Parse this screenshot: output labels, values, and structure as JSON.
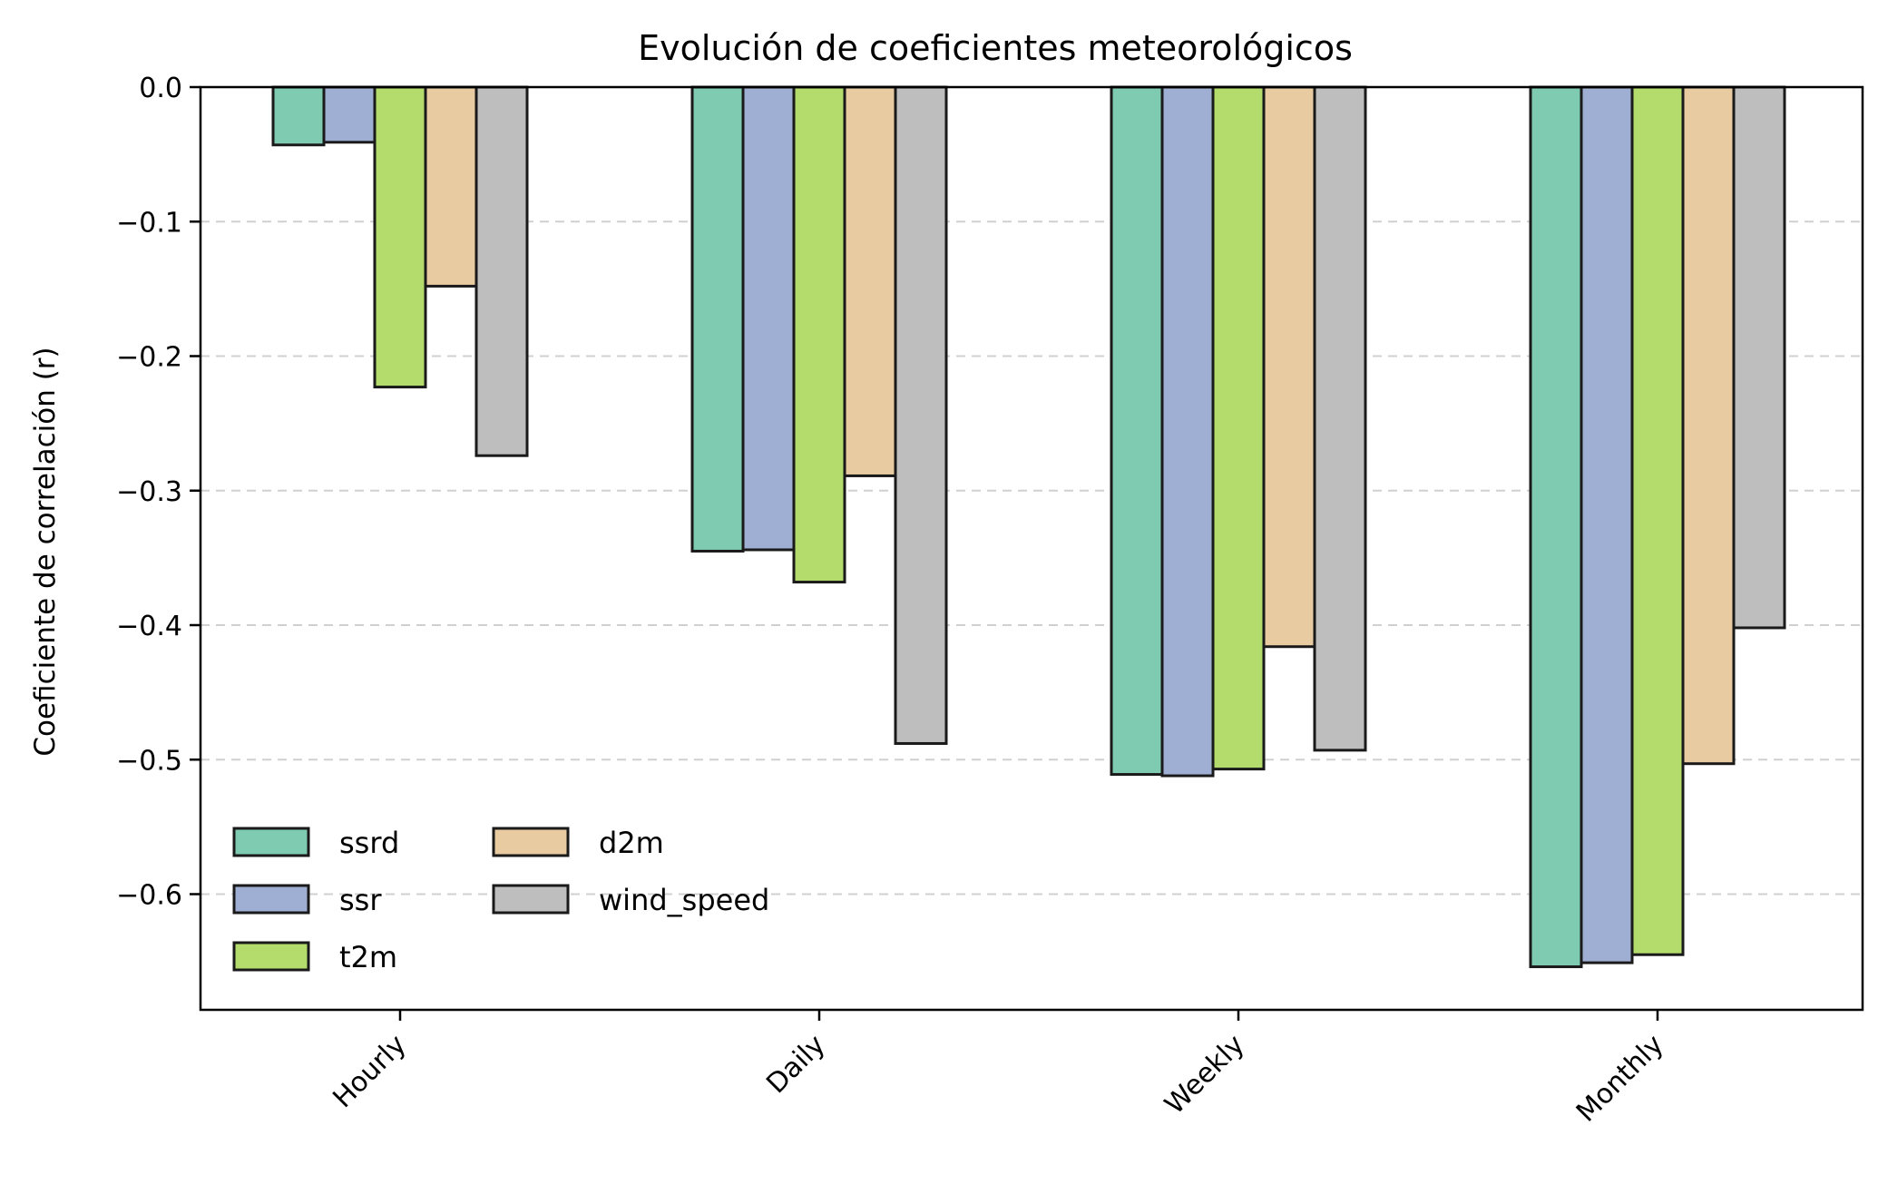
{
  "chart_data": {
    "type": "bar",
    "title": "Evolución de coeficientes meteorológicos",
    "xlabel": "",
    "ylabel": "Coeficiente de correlación (r)",
    "categories": [
      "Hourly",
      "Daily",
      "Weekly",
      "Monthly"
    ],
    "series": [
      {
        "name": "ssrd",
        "color": "#7fcbb2",
        "values": [
          -0.043,
          -0.345,
          -0.511,
          -0.654
        ]
      },
      {
        "name": "ssr",
        "color": "#9fafd3",
        "values": [
          -0.041,
          -0.344,
          -0.512,
          -0.651
        ]
      },
      {
        "name": "t2m",
        "color": "#b3dc6c",
        "values": [
          -0.223,
          -0.368,
          -0.507,
          -0.645
        ]
      },
      {
        "name": "d2m",
        "color": "#e8cba1",
        "values": [
          -0.148,
          -0.289,
          -0.416,
          -0.503
        ]
      },
      {
        "name": "wind_speed",
        "color": "#bebebe",
        "values": [
          -0.274,
          -0.488,
          -0.493,
          -0.402
        ]
      }
    ],
    "ylim": [
      -0.686,
      0.0
    ],
    "yticks": [
      0.0,
      -0.1,
      -0.2,
      -0.3,
      -0.4,
      -0.5,
      -0.6
    ],
    "ytick_labels": [
      "0.0",
      "−0.1",
      "−0.2",
      "−0.3",
      "−0.4",
      "−0.5",
      "−0.6"
    ],
    "grid": "y-dashed",
    "legend": {
      "placement": "lower-left",
      "columns": 2
    }
  }
}
